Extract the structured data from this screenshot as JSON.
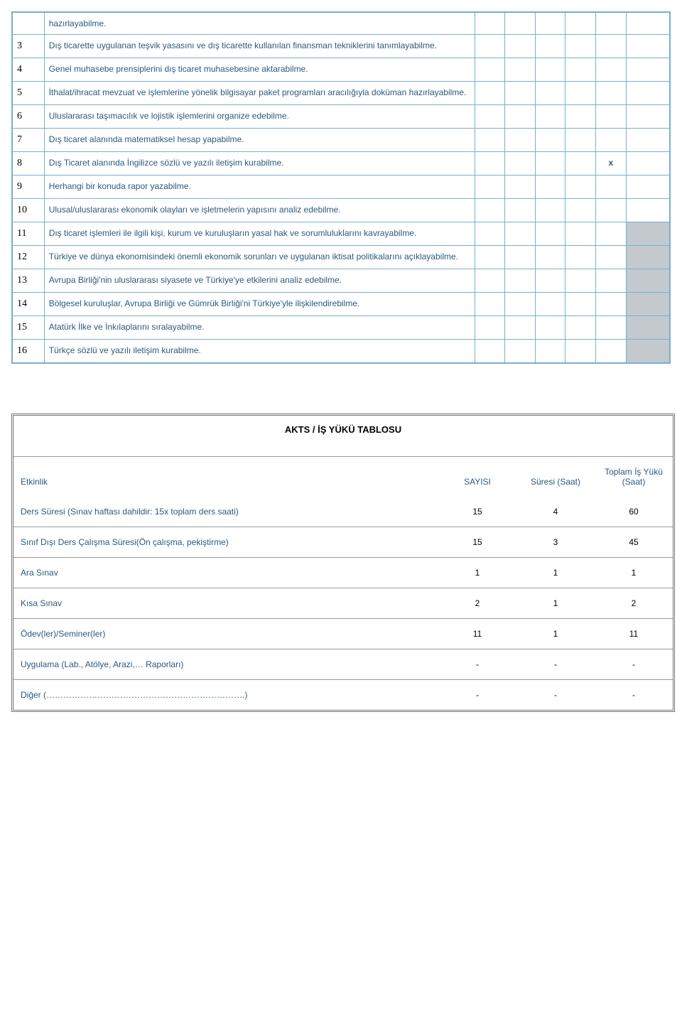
{
  "outcomes": {
    "topRow": {
      "desc": "hazırlayabilme."
    },
    "rows": [
      {
        "num": "3",
        "desc": "Dış ticarette uygulanan teşvik yasasını ve dış ticarette kullanılan finansman tekniklerini tanımlayabilme.",
        "marks": [
          "",
          "",
          "",
          "",
          "",
          ""
        ],
        "shaded": false,
        "spTop": true
      },
      {
        "num": "4",
        "desc": "Genel muhasebe prensiplerini dış ticaret muhasebesine aktarabilme.",
        "marks": [
          "",
          "",
          "",
          "",
          "",
          ""
        ],
        "shaded": false,
        "spTop": false
      },
      {
        "num": "5",
        "desc": "İthalat/ihracat mevzuat ve işlemlerine yönelik bilgisayar paket programları aracılığıyla doküman hazırlayabilme.",
        "marks": [
          "",
          "",
          "",
          "",
          "",
          ""
        ],
        "shaded": false,
        "spTop": false
      },
      {
        "num": "6",
        "desc": "Uluslararası taşımacılık ve lojistik işlemlerini organize edebilme.",
        "marks": [
          "",
          "",
          "",
          "",
          "",
          ""
        ],
        "shaded": false,
        "spTop": false
      },
      {
        "num": "7",
        "desc": "Dış ticaret alanında matematiksel hesap yapabilme.",
        "marks": [
          "",
          "",
          "",
          "",
          "",
          ""
        ],
        "shaded": false,
        "spTop": false
      },
      {
        "num": "8",
        "desc": "Dış Ticaret alanında İngilizce sözlü ve yazılı iletişim kurabilme.",
        "marks": [
          "",
          "",
          "",
          "",
          "x",
          ""
        ],
        "shaded": false,
        "spTop": false
      },
      {
        "num": "9",
        "desc": "Herhangi bir konuda rapor yazabilme.",
        "marks": [
          "",
          "",
          "",
          "",
          "",
          ""
        ],
        "shaded": false,
        "spTop": false
      },
      {
        "num": "10",
        "desc": "Ulusal/uluslararası ekonomik olayları ve işletmelerin yapısını analiz edebilme.",
        "marks": [
          "",
          "",
          "",
          "",
          "",
          ""
        ],
        "shaded": false,
        "spTop": false
      },
      {
        "num": "11",
        "desc": "Dış ticaret işlemleri ile ilgili kişi, kurum ve kuruluşların yasal hak ve sorumluluklarını kavrayabilme.",
        "marks": [
          "",
          "",
          "",
          "",
          "",
          ""
        ],
        "shaded": true,
        "spTop": true
      },
      {
        "num": "12",
        "desc": "Türkiye ve dünya ekonomisindeki önemli ekonomik sorunları ve uygulanan iktisat politikalarını açıklayabilme.",
        "marks": [
          "",
          "",
          "",
          "",
          "",
          ""
        ],
        "shaded": true,
        "spTop": true
      },
      {
        "num": "13",
        "desc": "Avrupa Birliği'nin uluslararası siyasete ve Türkiye'ye etkilerini analiz edebilme.",
        "marks": [
          "",
          "",
          "",
          "",
          "",
          ""
        ],
        "shaded": true,
        "spTop": true
      },
      {
        "num": "14",
        "desc": "Bölgesel kuruluşlar, Avrupa Birliği ve Gümrük Birliği'ni Türkiye'yle ilişkilendirebilme.",
        "marks": [
          "",
          "",
          "",
          "",
          "",
          ""
        ],
        "shaded": true,
        "spTop": true
      },
      {
        "num": "15",
        "desc": "Atatürk İlke ve İnkılaplarını sıralayabilme.",
        "marks": [
          "",
          "",
          "",
          "",
          "",
          ""
        ],
        "shaded": true,
        "spTop": false
      },
      {
        "num": "16",
        "desc": "Türkçe sözlü ve yazılı iletişim kurabilme.",
        "marks": [
          "",
          "",
          "",
          "",
          "",
          ""
        ],
        "shaded": true,
        "spTop": false
      }
    ]
  },
  "akts": {
    "title": "AKTS / İŞ YÜKÜ TABLOSU",
    "headers": {
      "activity": "Etkinlik",
      "count": "SAYISI",
      "duration": "Süresi (Saat)",
      "total": "Toplam İş Yükü (Saat)"
    },
    "rows": [
      {
        "label": "Ders Süresi (Sınav haftası dahildir: 15x toplam ders saati)",
        "count": "15",
        "duration": "4",
        "total": "60"
      },
      {
        "label": "Sınıf Dışı Ders Çalışma Süresi(Ön çalışma, pekiştirme)",
        "count": "15",
        "duration": "3",
        "total": "45"
      },
      {
        "label": "Ara Sınav",
        "count": "1",
        "duration": "1",
        "total": "1"
      },
      {
        "label": "Kısa Sınav",
        "count": "2",
        "duration": "1",
        "total": "2"
      },
      {
        "label": "Ödev(ler)/Seminer(ler)",
        "count": "11",
        "duration": "1",
        "total": "11"
      },
      {
        "label": "Uygulama (Lab., Atölye, Arazi,… Raporları)",
        "count": "-",
        "duration": "-",
        "total": "-"
      },
      {
        "label": "Diğer (…………………………………………………………….)",
        "count": "-",
        "duration": "-",
        "total": "-"
      }
    ]
  }
}
